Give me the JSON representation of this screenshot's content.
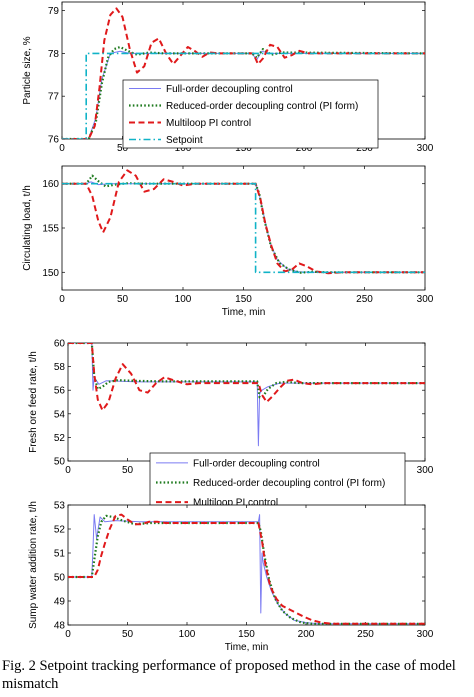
{
  "caption": "Fig. 2 Setpoint tracking performance of proposed method in the case of model mismatch",
  "legend_entries": [
    "Full-order decoupling control",
    "Reduced-order decoupling control (PI form)",
    "Multiloop PI control",
    "Setpoint"
  ],
  "colors": {
    "full_order": "#7b7bf2",
    "reduced_order": "#1f7a1f",
    "multiloop": "#e0191b",
    "setpoint": "#11b3c7"
  },
  "chart_data": [
    {
      "type": "line",
      "ylabel": "Particle size, %",
      "xlabel": "",
      "xlim": [
        0,
        300
      ],
      "ylim": [
        76,
        79.2
      ],
      "xticks": [
        0,
        50,
        100,
        150,
        200,
        250,
        300
      ],
      "yticks": [
        76,
        77,
        78,
        79
      ],
      "legend": "center",
      "series": [
        {
          "name": "Full-order decoupling control",
          "key": "full_order",
          "x": [
            0,
            22,
            28,
            33,
            40,
            48,
            56,
            66,
            80,
            100,
            157,
            161,
            165,
            172,
            300
          ],
          "y": [
            76.0,
            76.0,
            76.5,
            77.4,
            78.0,
            78.05,
            78.0,
            78.0,
            78.0,
            78.0,
            78.0,
            77.85,
            78.05,
            78.0,
            78.0
          ]
        },
        {
          "name": "Reduced-order decoupling control (PI form)",
          "key": "reduced_order",
          "x": [
            0,
            22,
            28,
            33,
            38,
            43,
            48,
            55,
            62,
            72,
            85,
            100,
            157,
            161,
            166,
            173,
            182,
            300
          ],
          "y": [
            76.0,
            76.0,
            76.4,
            77.3,
            77.9,
            78.1,
            78.15,
            78.05,
            77.97,
            78.02,
            78.0,
            78.0,
            78.0,
            77.9,
            78.1,
            77.97,
            78.02,
            78.0
          ]
        },
        {
          "name": "Multiloop PI control",
          "key": "multiloop",
          "x": [
            0,
            22,
            27,
            31,
            35,
            40,
            45,
            50,
            56,
            62,
            68,
            74,
            80,
            86,
            92,
            98,
            104,
            110,
            116,
            122,
            130,
            158,
            162,
            166,
            172,
            178,
            184,
            190,
            196,
            204,
            214,
            300
          ],
          "y": [
            76.0,
            76.0,
            76.3,
            77.2,
            78.3,
            78.9,
            79.05,
            78.85,
            78.1,
            77.55,
            77.7,
            78.25,
            78.35,
            78.0,
            77.75,
            77.95,
            78.15,
            78.05,
            77.92,
            78.02,
            78.0,
            78.0,
            77.75,
            77.88,
            78.2,
            78.15,
            77.9,
            77.96,
            78.06,
            78.0,
            78.0,
            78.0
          ]
        },
        {
          "name": "Setpoint",
          "key": "setpoint",
          "x": [
            0,
            20,
            20,
            300
          ],
          "y": [
            76.0,
            76.0,
            78.0,
            78.0
          ]
        }
      ]
    },
    {
      "type": "line",
      "ylabel": "Circulating load, t/h",
      "xlabel": "Time, min",
      "xlim": [
        0,
        300
      ],
      "ylim": [
        148,
        162
      ],
      "xticks": [
        0,
        50,
        100,
        150,
        200,
        250,
        300
      ],
      "yticks": [
        150,
        155,
        160
      ],
      "series": [
        {
          "name": "Full-order decoupling control",
          "key": "full_order",
          "x": [
            0,
            20,
            24,
            30,
            40,
            160,
            163,
            167,
            172,
            178,
            186,
            195,
            205,
            220,
            300
          ],
          "y": [
            160,
            160,
            160.2,
            159.9,
            160,
            160,
            158.8,
            156.3,
            153.3,
            151.4,
            150.4,
            150.05,
            150.0,
            150.0,
            150.0
          ]
        },
        {
          "name": "Reduced-order decoupling control (PI form)",
          "key": "reduced_order",
          "x": [
            0,
            20,
            25,
            30,
            36,
            44,
            54,
            70,
            160,
            163,
            167,
            173,
            180,
            188,
            197,
            207,
            220,
            300
          ],
          "y": [
            160,
            160,
            160.9,
            160.3,
            159.7,
            159.9,
            160.05,
            160,
            160,
            158.9,
            156.0,
            152.8,
            151.0,
            150.3,
            149.95,
            150.05,
            150.0,
            150.0
          ]
        },
        {
          "name": "Multiloop PI control",
          "key": "multiloop",
          "x": [
            0,
            20,
            25,
            30,
            34,
            40,
            47,
            54,
            61,
            68,
            76,
            84,
            92,
            100,
            110,
            160,
            164,
            168,
            173,
            178,
            184,
            190,
            196,
            202,
            210,
            220,
            232,
            300
          ],
          "y": [
            160,
            160,
            158.6,
            155.8,
            154.5,
            156.2,
            160.2,
            161.5,
            160.9,
            159.1,
            159.4,
            160.5,
            160.2,
            159.8,
            160,
            160,
            158.3,
            155.5,
            153.0,
            151.0,
            150.1,
            150.3,
            151.0,
            150.7,
            150.1,
            149.9,
            150.0,
            150.0
          ]
        },
        {
          "name": "Setpoint",
          "key": "setpoint",
          "x": [
            0,
            160,
            160,
            300
          ],
          "y": [
            160,
            160,
            150,
            150
          ]
        }
      ]
    },
    {
      "type": "line",
      "ylabel": "Fresh ore feed rate, t/h",
      "xlabel": "",
      "xlim": [
        0,
        300
      ],
      "ylim": [
        50,
        60
      ],
      "xticks": [
        0,
        50,
        100,
        150,
        200,
        250,
        300
      ],
      "yticks": [
        50,
        52,
        54,
        56,
        58,
        60
      ],
      "legend": "center-right",
      "series": [
        {
          "name": "Full-order decoupling control",
          "key": "full_order",
          "x": [
            0,
            20,
            21,
            22,
            26,
            32,
            60,
            159,
            160,
            161,
            163,
            168,
            178,
            200,
            300
          ],
          "y": [
            60,
            60,
            56.0,
            57.1,
            56.5,
            56.8,
            56.7,
            56.7,
            51.3,
            55.7,
            56.0,
            56.3,
            56.6,
            56.6,
            56.6
          ]
        },
        {
          "name": "Reduced-order decoupling control (PI form)",
          "key": "reduced_order",
          "x": [
            0,
            20,
            22,
            25,
            29,
            34,
            42,
            55,
            80,
            159,
            161,
            164,
            168,
            175,
            183,
            195,
            300
          ],
          "y": [
            60,
            60,
            57.2,
            56.1,
            56.3,
            56.7,
            56.85,
            56.8,
            56.75,
            56.75,
            55.4,
            55.5,
            56.1,
            56.6,
            56.7,
            56.6,
            56.6
          ]
        },
        {
          "name": "Multiloop PI control",
          "key": "multiloop",
          "x": [
            0,
            20,
            22,
            25,
            29,
            34,
            40,
            46,
            53,
            60,
            67,
            74,
            81,
            90,
            100,
            110,
            160,
            163,
            167,
            172,
            178,
            184,
            190,
            197,
            205,
            215,
            230,
            300
          ],
          "y": [
            60,
            60,
            57.4,
            55.2,
            54.3,
            55.0,
            57.0,
            58.2,
            57.4,
            56.0,
            55.8,
            56.6,
            57.1,
            56.8,
            56.5,
            56.6,
            56.6,
            55.6,
            55.0,
            55.5,
            56.2,
            56.8,
            56.9,
            56.6,
            56.5,
            56.6,
            56.6,
            56.6
          ]
        }
      ]
    },
    {
      "type": "line",
      "ylabel": "Sump water addition rate, t/h",
      "xlabel": "Time, min",
      "xlim": [
        0,
        300
      ],
      "ylim": [
        48,
        53
      ],
      "xticks": [
        0,
        50,
        100,
        150,
        200,
        250,
        300
      ],
      "yticks": [
        48,
        49,
        50,
        51,
        52,
        53
      ],
      "series": [
        {
          "name": "Full-order decoupling control",
          "key": "full_order",
          "x": [
            0,
            20,
            21,
            22,
            24,
            27,
            31,
            40,
            60,
            160,
            161,
            162,
            163,
            164,
            167,
            171,
            176,
            182,
            190,
            200,
            210,
            300
          ],
          "y": [
            50,
            50,
            51.2,
            52.6,
            51.6,
            52.5,
            52.3,
            52.35,
            52.3,
            52.3,
            52.6,
            48.5,
            51.0,
            50.6,
            50.0,
            49.4,
            48.9,
            48.5,
            48.2,
            48.1,
            48.05,
            48.05
          ]
        },
        {
          "name": "Reduced-order decoupling control (PI form)",
          "key": "reduced_order",
          "x": [
            0,
            20,
            22,
            25,
            28,
            32,
            38,
            46,
            56,
            70,
            160,
            162,
            165,
            169,
            174,
            180,
            187,
            196,
            206,
            300
          ],
          "y": [
            50,
            50,
            50.7,
            51.7,
            52.3,
            52.55,
            52.5,
            52.35,
            52.2,
            52.25,
            52.25,
            51.9,
            50.9,
            49.9,
            49.1,
            48.6,
            48.3,
            48.1,
            48.05,
            48.05
          ]
        },
        {
          "name": "Multiloop PI control",
          "key": "multiloop",
          "x": [
            0,
            22,
            25,
            28,
            31,
            35,
            40,
            45,
            50,
            56,
            62,
            68,
            75,
            82,
            90,
            100,
            160,
            163,
            166,
            170,
            175,
            180,
            186,
            192,
            198,
            205,
            213,
            222,
            300
          ],
          "y": [
            50,
            50,
            50.3,
            50.9,
            51.4,
            52.0,
            52.55,
            52.6,
            52.4,
            52.2,
            52.2,
            52.3,
            52.3,
            52.25,
            52.25,
            52.25,
            52.25,
            51.5,
            50.5,
            49.6,
            49.1,
            48.8,
            48.65,
            48.5,
            48.35,
            48.2,
            48.1,
            48.05,
            48.05
          ]
        }
      ]
    }
  ]
}
